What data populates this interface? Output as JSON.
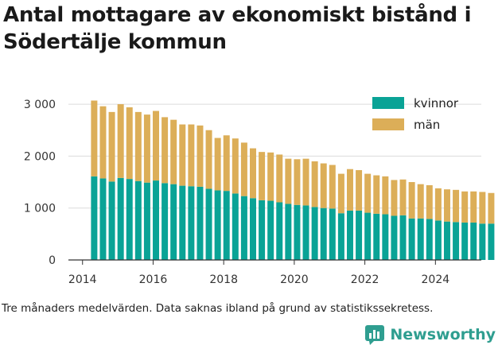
{
  "title": "Antal mottagare av ekonomiskt bistånd i Södertälje kommun",
  "note": "Tre månaders medelvärden. Data saknas ibland på grund av statistikssekretess.",
  "brand": "Newsworthy",
  "colors": {
    "kvinnor": "#0aa396",
    "man": "#dcae58"
  },
  "chart_data": {
    "type": "bar",
    "stacked": true,
    "x_start": 2014.33,
    "x_step": 0.25,
    "xlim": [
      2013.6,
      2025.3
    ],
    "ylim": [
      0,
      3200
    ],
    "xticks": [
      2014,
      2016,
      2018,
      2020,
      2022,
      2024
    ],
    "xtick_labels": [
      "2014",
      "2016",
      "2018",
      "2020",
      "2022",
      "2024"
    ],
    "yticks": [
      0,
      1000,
      2000,
      3000
    ],
    "ytick_labels": [
      "0",
      "1 000",
      "2 000",
      "3 000"
    ],
    "grid": "horizontal",
    "legend_position": "top-right",
    "series": [
      {
        "name": "kvinnor",
        "values": [
          1610,
          1570,
          1510,
          1580,
          1560,
          1520,
          1490,
          1530,
          1480,
          1460,
          1430,
          1420,
          1410,
          1370,
          1340,
          1330,
          1280,
          1230,
          1190,
          1150,
          1140,
          1110,
          1080,
          1060,
          1050,
          1020,
          1000,
          990,
          900,
          950,
          950,
          910,
          890,
          880,
          850,
          860,
          800,
          800,
          790,
          760,
          740,
          730,
          720,
          720,
          700,
          700
        ]
      },
      {
        "name": "män",
        "values": [
          1460,
          1390,
          1340,
          1420,
          1380,
          1330,
          1310,
          1340,
          1270,
          1240,
          1180,
          1190,
          1180,
          1130,
          1010,
          1070,
          1060,
          1030,
          960,
          930,
          930,
          920,
          870,
          880,
          900,
          880,
          860,
          840,
          760,
          800,
          780,
          750,
          740,
          730,
          690,
          690,
          700,
          660,
          650,
          620,
          620,
          620,
          600,
          600,
          610,
          590
        ]
      }
    ]
  }
}
